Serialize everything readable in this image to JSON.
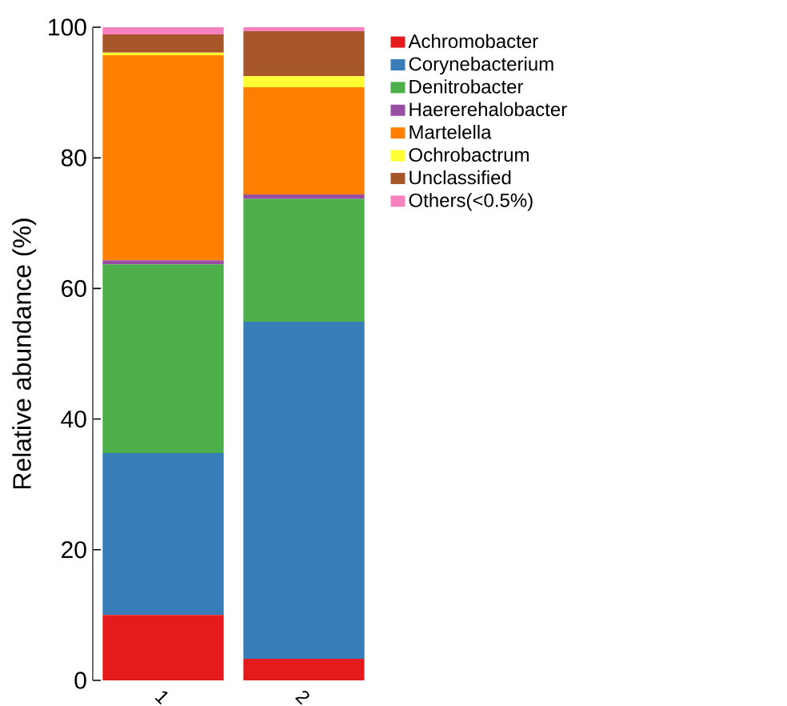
{
  "chart_data": {
    "type": "bar",
    "stacked": true,
    "ylabel": "Relative abundance (%)",
    "categories": [
      "1",
      "2"
    ],
    "series": [
      {
        "name": "Achromobacter",
        "color": "#e41a1c",
        "values": [
          10.0,
          3.3
        ]
      },
      {
        "name": "Corynebacterium",
        "color": "#377eb8",
        "values": [
          24.8,
          51.6
        ]
      },
      {
        "name": "Denitrobacter",
        "color": "#4daf4a",
        "values": [
          28.9,
          18.8
        ]
      },
      {
        "name": "Haererehalobacter",
        "color": "#984ea3",
        "values": [
          0.6,
          0.7
        ]
      },
      {
        "name": "Martelella",
        "color": "#ff7f00",
        "values": [
          31.4,
          16.4
        ]
      },
      {
        "name": "Ochrobactrum",
        "color": "#ffff33",
        "values": [
          0.4,
          1.7
        ]
      },
      {
        "name": "Unclassified",
        "color": "#a65628",
        "values": [
          2.8,
          6.9
        ]
      },
      {
        "name": "Others(<0.5%)",
        "color": "#f781bf",
        "values": [
          1.1,
          0.6
        ]
      }
    ],
    "ylim": [
      0,
      100
    ],
    "yticks": [
      0,
      20,
      40,
      60,
      80,
      100
    ],
    "legend": "top right",
    "grid": false
  }
}
